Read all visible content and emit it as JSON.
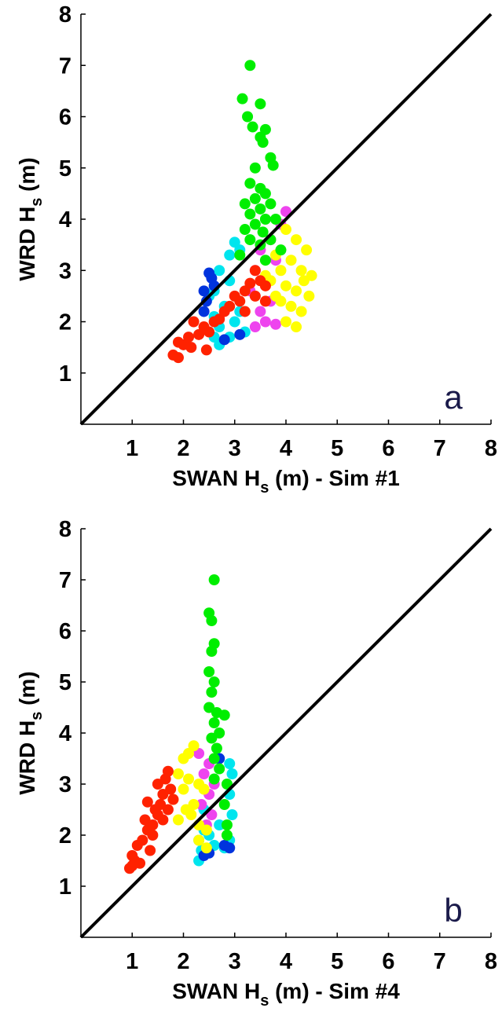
{
  "chart_data": [
    {
      "type": "scatter",
      "xlabel": [
        "SWAN H",
        "s",
        " (m) - Sim #1"
      ],
      "ylabel": [
        "WRD H",
        "s",
        " (m)"
      ],
      "annotation": "a",
      "xlim": [
        0,
        8
      ],
      "ylim": [
        0,
        8
      ],
      "xticks": [
        1,
        2,
        3,
        4,
        5,
        6,
        7,
        8
      ],
      "yticks": [
        1,
        2,
        3,
        4,
        5,
        6,
        7,
        8
      ],
      "diagonal": true,
      "series": [
        {
          "color": "#00e5ee",
          "x": [
            3.0,
            3.1,
            2.9,
            2.7,
            2.9,
            2.6,
            2.5,
            2.8,
            2.6,
            2.7,
            2.6,
            2.7,
            3.0,
            3.2,
            3.1,
            2.9
          ],
          "y": [
            3.55,
            3.4,
            3.3,
            3.0,
            2.8,
            2.6,
            2.5,
            2.3,
            2.1,
            1.9,
            1.7,
            1.55,
            2.0,
            1.8,
            2.2,
            1.7
          ]
        },
        {
          "color": "#0033dd",
          "x": [
            2.5,
            2.55,
            2.4,
            2.45,
            2.6,
            2.8,
            3.1,
            2.4
          ],
          "y": [
            2.95,
            2.85,
            2.6,
            2.4,
            2.7,
            1.65,
            1.75,
            2.2
          ]
        },
        {
          "color": "#ee44ee",
          "x": [
            4.0,
            3.9,
            3.7,
            3.5,
            3.8,
            3.4,
            3.6,
            3.3,
            3.7,
            3.5,
            3.6,
            3.8,
            3.4
          ],
          "y": [
            4.15,
            3.9,
            3.6,
            3.4,
            3.2,
            3.0,
            2.8,
            2.6,
            2.4,
            2.2,
            2.0,
            1.95,
            1.9
          ]
        },
        {
          "color": "#ffff00",
          "x": [
            4.0,
            4.2,
            4.4,
            3.8,
            4.1,
            4.3,
            3.9,
            4.5,
            3.7,
            4.0,
            4.2,
            4.45,
            3.8,
            4.1,
            4.3,
            4.0,
            4.2,
            3.6,
            4.35,
            3.9
          ],
          "y": [
            3.8,
            3.6,
            3.4,
            3.3,
            3.2,
            3.0,
            3.0,
            2.9,
            2.8,
            2.7,
            2.6,
            2.5,
            2.5,
            2.3,
            2.2,
            2.0,
            1.9,
            2.9,
            2.8,
            2.4
          ]
        },
        {
          "color": "#00ee00",
          "x": [
            3.3,
            3.15,
            3.5,
            3.25,
            3.35,
            3.6,
            3.5,
            3.55,
            3.7,
            3.4,
            3.75,
            3.3,
            3.5,
            3.6,
            3.4,
            3.2,
            3.7,
            3.5,
            3.3,
            3.6,
            3.8,
            3.4,
            3.2,
            3.55,
            3.7,
            3.3,
            3.9,
            3.5,
            3.1,
            3.6
          ],
          "y": [
            7.0,
            6.35,
            6.25,
            6.0,
            5.8,
            5.75,
            5.6,
            5.5,
            5.2,
            5.0,
            5.05,
            4.7,
            4.6,
            4.5,
            4.4,
            4.3,
            4.3,
            4.2,
            4.1,
            4.0,
            4.0,
            3.9,
            3.8,
            3.75,
            3.6,
            3.6,
            3.4,
            3.5,
            3.3,
            3.2
          ]
        },
        {
          "color": "#ff2200",
          "x": [
            1.8,
            1.9,
            1.9,
            2.0,
            2.15,
            2.1,
            2.3,
            2.4,
            2.5,
            2.45,
            2.6,
            2.7,
            2.8,
            2.9,
            3.0,
            3.1,
            3.2,
            3.3,
            3.4,
            3.5,
            3.6,
            3.4,
            3.2,
            3.6,
            2.2
          ],
          "y": [
            1.35,
            1.3,
            1.6,
            1.55,
            1.5,
            1.7,
            1.75,
            1.9,
            1.8,
            1.45,
            2.0,
            2.05,
            2.2,
            2.3,
            2.5,
            2.4,
            2.6,
            2.75,
            2.5,
            2.8,
            2.7,
            3.0,
            2.2,
            2.4,
            2.0
          ]
        }
      ]
    },
    {
      "type": "scatter",
      "xlabel": [
        "SWAN H",
        "s",
        " (m) - Sim #4"
      ],
      "ylabel": [
        "WRD H",
        "s",
        " (m)"
      ],
      "annotation": "b",
      "xlim": [
        0,
        8
      ],
      "ylim": [
        0,
        8
      ],
      "xticks": [
        1,
        2,
        3,
        4,
        5,
        6,
        7,
        8
      ],
      "yticks": [
        1,
        2,
        3,
        4,
        5,
        6,
        7,
        8
      ],
      "diagonal": true,
      "series": [
        {
          "color": "#00e5ee",
          "x": [
            2.3,
            2.35,
            2.3,
            2.4,
            2.5,
            2.6,
            2.8,
            2.9,
            2.95,
            2.9,
            2.95,
            2.9,
            2.4,
            2.7
          ],
          "y": [
            1.5,
            1.7,
            1.9,
            2.1,
            2.0,
            1.8,
            1.75,
            1.9,
            2.4,
            2.8,
            3.2,
            3.4,
            2.5,
            2.2
          ]
        },
        {
          "color": "#0033dd",
          "x": [
            2.5,
            2.8,
            2.7,
            2.4,
            2.9
          ],
          "y": [
            1.65,
            1.8,
            3.5,
            1.6,
            1.75
          ]
        },
        {
          "color": "#ee44ee",
          "x": [
            2.3,
            2.5,
            2.4,
            2.6,
            2.5,
            2.35,
            2.55,
            2.45
          ],
          "y": [
            3.6,
            3.4,
            3.2,
            3.0,
            2.8,
            2.6,
            2.4,
            2.2
          ]
        },
        {
          "color": "#ffff00",
          "x": [
            2.2,
            2.1,
            2.0,
            1.9,
            2.1,
            2.3,
            2.0,
            1.8,
            2.2,
            2.05,
            1.9,
            2.3,
            2.4,
            2.45,
            2.45,
            2.3,
            2.15
          ],
          "y": [
            3.75,
            3.6,
            3.5,
            3.2,
            3.1,
            3.0,
            2.9,
            2.7,
            2.6,
            2.5,
            2.3,
            2.2,
            2.9,
            2.1,
            1.75,
            1.9,
            2.4
          ]
        },
        {
          "color": "#00ee00",
          "x": [
            2.6,
            2.5,
            2.55,
            2.6,
            2.55,
            2.5,
            2.6,
            2.55,
            2.5,
            2.65,
            2.8,
            2.6,
            2.7,
            2.55,
            2.65,
            2.6,
            2.7,
            2.85,
            2.8,
            2.85,
            2.85,
            2.6
          ],
          "y": [
            7.0,
            6.35,
            6.2,
            5.75,
            5.6,
            5.2,
            5.0,
            4.8,
            4.5,
            4.4,
            4.35,
            4.2,
            4.0,
            3.9,
            3.7,
            3.5,
            3.3,
            3.0,
            2.6,
            2.2,
            2.0,
            3.1
          ]
        },
        {
          "color": "#ff2200",
          "x": [
            0.95,
            1.0,
            1.05,
            1.15,
            1.1,
            1.2,
            1.3,
            1.25,
            1.4,
            1.45,
            1.3,
            1.5,
            1.55,
            1.6,
            1.5,
            1.65,
            1.7,
            1.75,
            1.8,
            1.4,
            1.6,
            1.7,
            1.35,
            1.0
          ],
          "y": [
            1.35,
            1.6,
            1.5,
            1.45,
            1.8,
            1.9,
            2.1,
            2.3,
            2.2,
            2.5,
            2.65,
            2.4,
            2.6,
            2.8,
            3.0,
            3.1,
            3.25,
            2.9,
            2.7,
            2.0,
            2.3,
            2.5,
            1.7,
            1.4
          ]
        }
      ]
    }
  ]
}
